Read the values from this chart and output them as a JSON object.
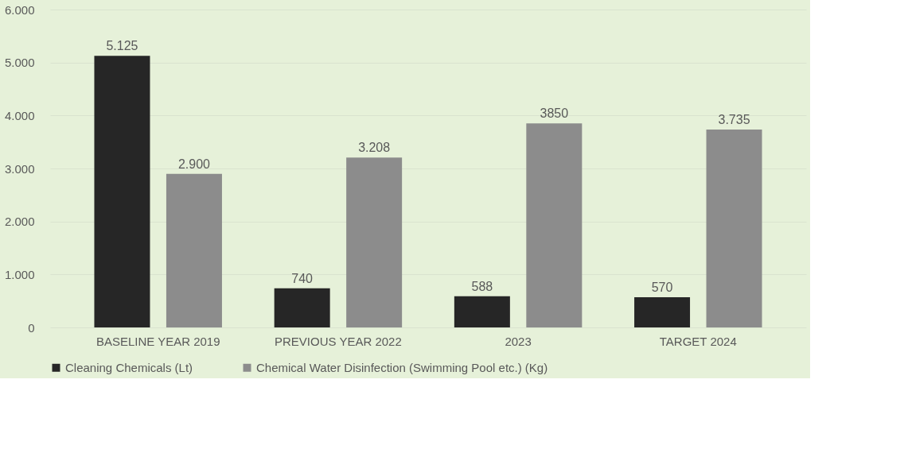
{
  "chart_data": {
    "type": "bar",
    "categories": [
      "BASELINE YEAR 2019",
      "PREVIOUS YEAR 2022",
      "2023",
      "TARGET 2024"
    ],
    "series": [
      {
        "name": "Cleaning Chemicals (Lt)",
        "color": "#262626",
        "values": [
          5125,
          740,
          588,
          570
        ],
        "value_labels": [
          "5.125",
          "740",
          "588",
          "570"
        ]
      },
      {
        "name": "Chemical Water Disinfection (Swimming Pool etc.) (Kg)",
        "color": "#8c8c8c",
        "values": [
          2900,
          3208,
          3850,
          3735
        ],
        "value_labels": [
          "2.900",
          "3.208",
          "3850",
          "3.735"
        ]
      }
    ],
    "ylim": [
      0,
      6000
    ],
    "yticks": [
      0,
      {
        "value": 1000,
        "label": "1.000"
      },
      {
        "value": 2000,
        "label": "2.000"
      },
      {
        "value": 3000,
        "label": "3.000"
      },
      {
        "value": 4000,
        "label": "4.000"
      },
      {
        "value": 5000,
        "label": "5.000"
      },
      {
        "value": 6000,
        "label": "6.000"
      }
    ],
    "grid": "y",
    "legend": "bottom"
  }
}
